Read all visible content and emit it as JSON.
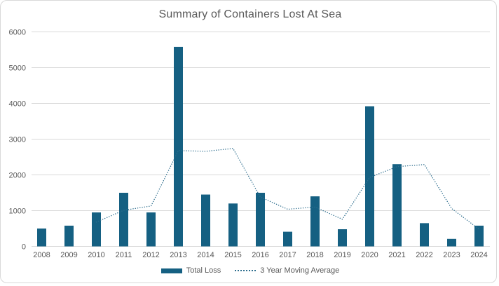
{
  "colors": {
    "bar": "#156082",
    "line": "#2E6E8E",
    "gridline": "#D9D9D9",
    "frame_border": "#D9D9D9",
    "text": "#595959",
    "background": "#FFFFFF"
  },
  "chart_data": {
    "type": "bar",
    "title": "Summary of Containers Lost At Sea",
    "categories": [
      "2008",
      "2009",
      "2010",
      "2011",
      "2012",
      "2013",
      "2014",
      "2015",
      "2016",
      "2017",
      "2018",
      "2019",
      "2020",
      "2021",
      "2022",
      "2023",
      "2024"
    ],
    "series": [
      {
        "name": "Total Loss",
        "type": "bar",
        "color": "#156082",
        "values": [
          500,
          580,
          950,
          1500,
          950,
          5580,
          1450,
          1200,
          1500,
          410,
          1400,
          480,
          3920,
          2300,
          650,
          210,
          580
        ]
      },
      {
        "name": "3 Year Moving Average",
        "type": "line",
        "line_style": "dotted",
        "color": "#2E6E8E",
        "values": [
          null,
          null,
          680,
          1010,
          1130,
          2680,
          2660,
          2740,
          1380,
          1040,
          1100,
          760,
          1930,
          2230,
          2290,
          1060,
          480
        ]
      }
    ],
    "xlabel": "",
    "ylabel": "",
    "ylim": [
      0,
      6000
    ],
    "y_ticks": [
      0,
      1000,
      2000,
      3000,
      4000,
      5000,
      6000
    ],
    "grid": "horizontal",
    "legend_position": "bottom"
  }
}
